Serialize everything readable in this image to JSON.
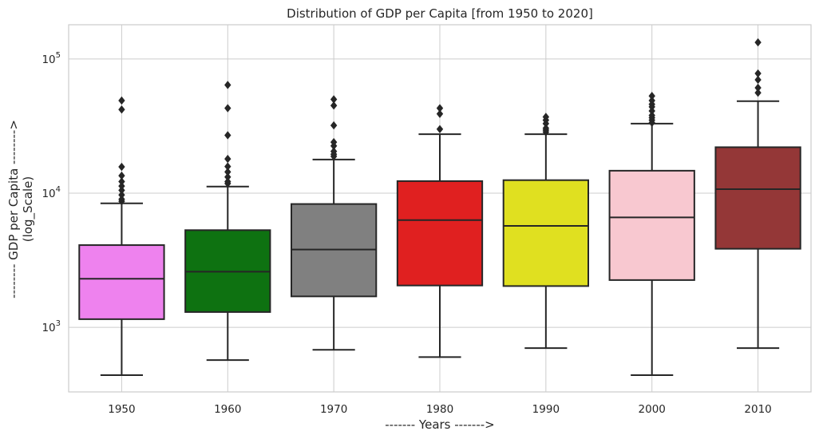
{
  "chart_data": {
    "type": "box",
    "title": "Distribution of GDP per Capita [from 1950 to 2020]",
    "xlabel": "------- Years ------->",
    "ylabel_lines": [
      "-------- GDP per Capita -------->",
      "(log_Scale)"
    ],
    "yscale": "log",
    "ylim": [
      330,
      180000
    ],
    "yticks": [
      {
        "value": 1000,
        "base": "10",
        "exp": "3"
      },
      {
        "value": 10000,
        "base": "10",
        "exp": "4"
      },
      {
        "value": 100000,
        "base": "10",
        "exp": "5"
      }
    ],
    "grid": true,
    "categories": [
      "1950",
      "1960",
      "1970",
      "1980",
      "1990",
      "2000",
      "2010"
    ],
    "boxes": [
      {
        "category": "1950",
        "color": "#ee82ee",
        "whisker_low": 440,
        "q1": 1150,
        "median": 2300,
        "q3": 4100,
        "whisker_high": 8400,
        "outliers": [
          8700,
          9000,
          9700,
          10500,
          11300,
          12200,
          13500,
          15700,
          42000,
          49000
        ]
      },
      {
        "category": "1960",
        "color": "#0e7211",
        "whisker_low": 570,
        "q1": 1300,
        "median": 2600,
        "q3": 5300,
        "whisker_high": 11200,
        "outliers": [
          11800,
          12200,
          13200,
          14400,
          15800,
          18000,
          27000,
          43000,
          64000
        ]
      },
      {
        "category": "1970",
        "color": "#808080",
        "whisker_low": 680,
        "q1": 1700,
        "median": 3800,
        "q3": 8300,
        "whisker_high": 17800,
        "outliers": [
          18800,
          19500,
          20500,
          22500,
          24000,
          32000,
          45000,
          50000
        ]
      },
      {
        "category": "1980",
        "color": "#e02020",
        "whisker_low": 600,
        "q1": 2050,
        "median": 6300,
        "q3": 12300,
        "whisker_high": 27500,
        "outliers": [
          30000,
          39000,
          43000
        ]
      },
      {
        "category": "1990",
        "color": "#e0e020",
        "whisker_low": 700,
        "q1": 2030,
        "median": 5700,
        "q3": 12500,
        "whisker_high": 27500,
        "outliers": [
          28500,
          29500,
          30500,
          33000,
          35000,
          37000
        ]
      },
      {
        "category": "2000",
        "color": "#f8c8d0",
        "whisker_low": 440,
        "q1": 2250,
        "median": 6600,
        "q3": 14700,
        "whisker_high": 33000,
        "outliers": [
          33500,
          35000,
          36500,
          38000,
          41000,
          44000,
          46000,
          49000,
          53000
        ]
      },
      {
        "category": "2010",
        "color": "#943737",
        "whisker_low": 700,
        "q1": 3850,
        "median": 10700,
        "q3": 22000,
        "whisker_high": 48500,
        "outliers": [
          56000,
          61000,
          70000,
          78000,
          133000
        ]
      }
    ]
  }
}
